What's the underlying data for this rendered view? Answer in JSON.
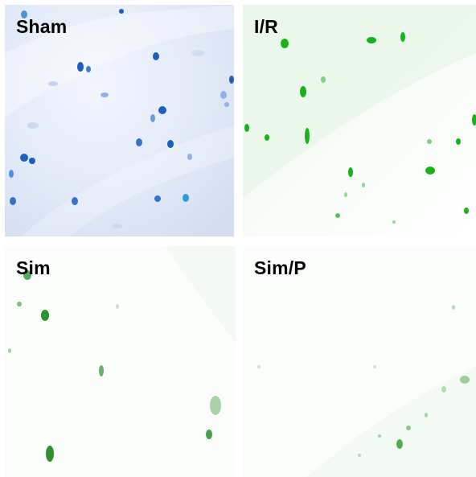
{
  "panels": [
    {
      "id": "sham",
      "label": "Sham",
      "stain": "#1f5fbf",
      "background": "#dde6f6"
    },
    {
      "id": "ir",
      "label": "I/R",
      "stain": "#18b818",
      "background": "#f3fbf3"
    },
    {
      "id": "sim",
      "label": "Sim",
      "stain": "#3a9a3a",
      "background": "#fafdfa"
    },
    {
      "id": "sim_p",
      "label": "Sim/P",
      "stain": "#6cbf6c",
      "background": "#fbfdfb"
    }
  ]
}
